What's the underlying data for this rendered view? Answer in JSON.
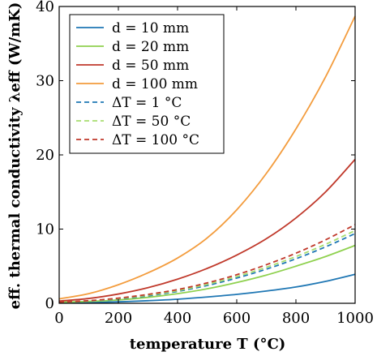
{
  "chart_data": {
    "type": "line",
    "xlabel": "temperature T (°C)",
    "ylabel": "eff. thermal conductivity λeff (W/mK)",
    "xlim": [
      0,
      1000
    ],
    "ylim": [
      0,
      40
    ],
    "x_ticks": [
      "0",
      "200",
      "400",
      "600",
      "800",
      "1000"
    ],
    "y_ticks": [
      "0",
      "10",
      "20",
      "30",
      "40"
    ],
    "grid": false,
    "legend_position": "top-left",
    "x": [
      0,
      100,
      200,
      300,
      400,
      500,
      600,
      700,
      800,
      900,
      1000
    ],
    "series": [
      {
        "name": "d = 10 mm",
        "color": "#1f77b4",
        "style": "solid",
        "values": [
          0.05,
          0.1,
          0.2,
          0.35,
          0.55,
          0.85,
          1.2,
          1.65,
          2.2,
          2.95,
          3.9
        ]
      },
      {
        "name": "d = 20 mm",
        "color": "#8fd14f",
        "style": "solid",
        "values": [
          0.15,
          0.25,
          0.45,
          0.8,
          1.3,
          1.95,
          2.8,
          3.8,
          5.0,
          6.3,
          7.8
        ]
      },
      {
        "name": "d = 50 mm",
        "color": "#c0392b",
        "style": "solid",
        "values": [
          0.3,
          0.65,
          1.25,
          2.1,
          3.25,
          4.7,
          6.5,
          8.7,
          11.5,
          15.0,
          19.4
        ]
      },
      {
        "name": "d = 100 mm",
        "color": "#f39c3d",
        "style": "solid",
        "values": [
          0.6,
          1.3,
          2.5,
          4.1,
          6.1,
          8.8,
          12.6,
          17.5,
          23.5,
          30.5,
          38.7
        ]
      },
      {
        "name": "ΔT = 1 °C",
        "color": "#1f77b4",
        "style": "dashed",
        "values": [
          0.1,
          0.3,
          0.6,
          1.0,
          1.6,
          2.4,
          3.4,
          4.6,
          6.0,
          7.6,
          9.4
        ]
      },
      {
        "name": "ΔT = 50 °C",
        "color": "#a8dd6e",
        "style": "dashed",
        "values": [
          0.1,
          0.3,
          0.65,
          1.1,
          1.7,
          2.55,
          3.6,
          4.85,
          6.3,
          7.95,
          9.8
        ]
      },
      {
        "name": "ΔT = 100 °C",
        "color": "#c0392b",
        "style": "dashed",
        "values": [
          0.15,
          0.35,
          0.7,
          1.2,
          1.85,
          2.75,
          3.85,
          5.2,
          6.75,
          8.55,
          10.6
        ]
      }
    ]
  }
}
